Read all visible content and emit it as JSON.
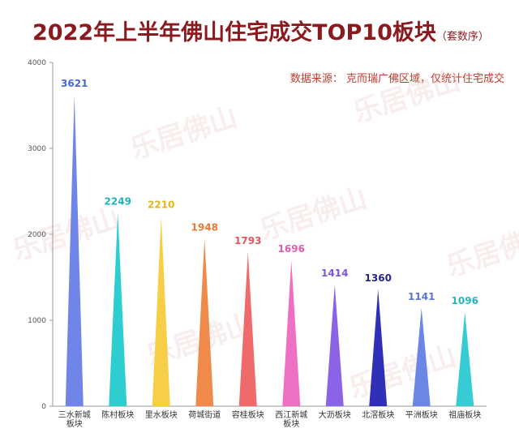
{
  "title": "2022年上半年佛山住宅成交TOP10板块",
  "subtitle": "（套数序）",
  "source_note": "数据来源： 克而瑞广佛区域，仅统计住宅成交",
  "watermark": "乐居佛山",
  "chart_data": {
    "type": "bar",
    "title": "2022年上半年佛山住宅成交TOP10板块",
    "subtitle": "（套数序）",
    "categories": [
      "三水新城板块",
      "陈村板块",
      "里水板块",
      "荷城街道",
      "容桂板块",
      "西江新城板块",
      "大沥板块",
      "北滘板块",
      "平洲板块",
      "祖庙板块"
    ],
    "category_lines": [
      [
        "三水新城",
        "板块"
      ],
      [
        "陈村板块"
      ],
      [
        "里水板块"
      ],
      [
        "荷城街道"
      ],
      [
        "容桂板块"
      ],
      [
        "西江新城",
        "板块"
      ],
      [
        "大沥板块"
      ],
      [
        "北滘板块"
      ],
      [
        "平洲板块"
      ],
      [
        "祖庙板块"
      ]
    ],
    "values": [
      3621,
      2249,
      2210,
      1948,
      1793,
      1696,
      1414,
      1360,
      1141,
      1096
    ],
    "colors": [
      "#6f86e8",
      "#2ecdd0",
      "#f6cf47",
      "#f08a4b",
      "#ef6a6a",
      "#ee70c4",
      "#8a63e6",
      "#2f2fb8",
      "#6c86e6",
      "#37cbd3"
    ],
    "label_colors": [
      "#4a67d9",
      "#1fb3bd",
      "#e8b518",
      "#ea7a33",
      "#e2565c",
      "#e15ab0",
      "#7b56d9",
      "#24248f",
      "#5a74d8",
      "#22b8c0"
    ],
    "ylim": [
      0,
      4000
    ],
    "yticks": [
      0,
      1000,
      2000,
      3000,
      4000
    ],
    "grid": false,
    "legend": "none"
  }
}
